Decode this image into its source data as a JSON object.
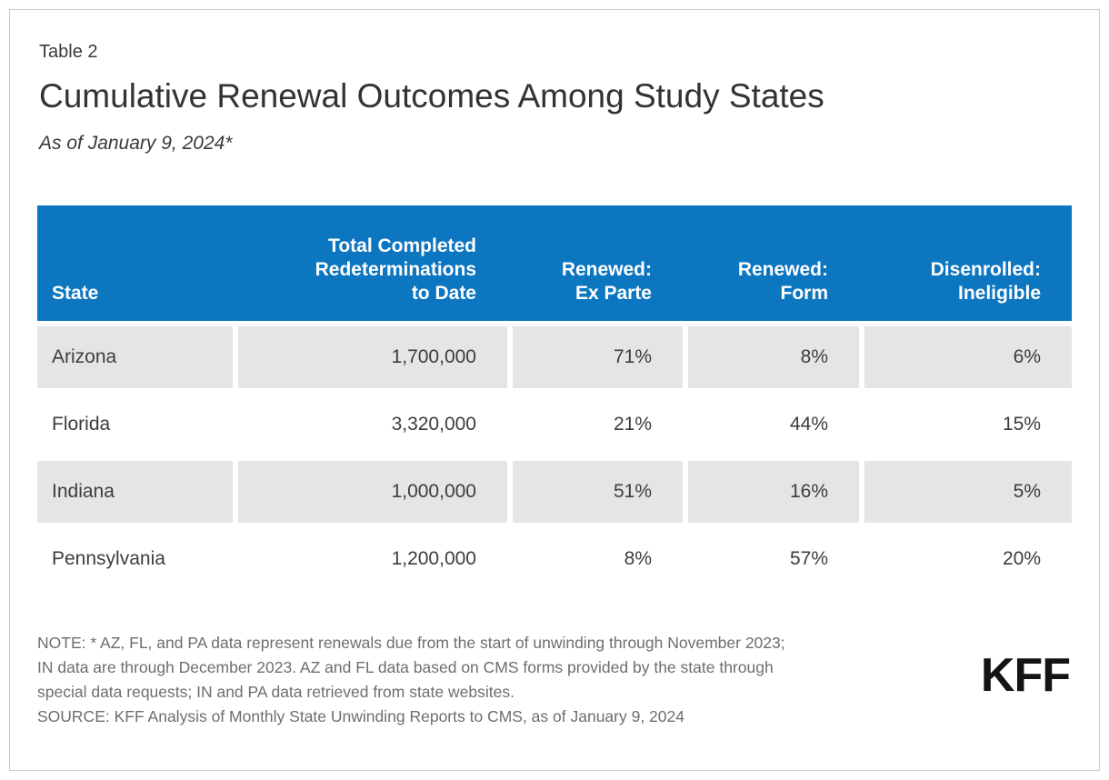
{
  "colors": {
    "header_blue": "#0d76c0",
    "row_gray": "#e5e5e5",
    "body_text": "#3d3d3d",
    "note_gray": "#6e6e6e"
  },
  "header": {
    "eyebrow": "Table 2",
    "title": "Cumulative Renewal Outcomes Among Study States",
    "subtitle": "As of January 9, 2024*"
  },
  "table": {
    "columns": [
      {
        "id": "state",
        "label": "State"
      },
      {
        "id": "total",
        "label": "Total Completed\nRedeterminations\nto Date"
      },
      {
        "id": "ex_parte",
        "label": "Renewed:\nEx Parte"
      },
      {
        "id": "form",
        "label": "Renewed:\nForm"
      },
      {
        "id": "ineligible",
        "label": "Disenrolled:\nIneligible"
      }
    ],
    "rows": [
      {
        "state": "Arizona",
        "total": "1,700,000",
        "ex_parte": "71%",
        "form": "8%",
        "ineligible": "6%"
      },
      {
        "state": "Florida",
        "total": "3,320,000",
        "ex_parte": "21%",
        "form": "44%",
        "ineligible": "15%"
      },
      {
        "state": "Indiana",
        "total": "1,000,000",
        "ex_parte": "51%",
        "form": "16%",
        "ineligible": "5%"
      },
      {
        "state": "Pennsylvania",
        "total": "1,200,000",
        "ex_parte": "8%",
        "form": "57%",
        "ineligible": "20%"
      }
    ]
  },
  "footer": {
    "note_lines": [
      "NOTE: * AZ, FL, and PA data represent renewals due from the start of unwinding through November 2023;",
      "IN data are through December 2023. AZ and FL data based on CMS forms provided by the state through",
      "special data requests; IN and PA data retrieved from state websites."
    ],
    "source_line": "SOURCE: KFF Analysis of Monthly State Unwinding Reports to CMS, as of January 9, 2024",
    "logo_text": "KFF"
  },
  "chart_data": {
    "type": "table",
    "title": "Cumulative Renewal Outcomes Among Study States",
    "subtitle": "As of January 9, 2024*",
    "columns": [
      "State",
      "Total Completed Redeterminations to Date",
      "Renewed: Ex Parte",
      "Renewed: Form",
      "Disenrolled: Ineligible"
    ],
    "rows": [
      [
        "Arizona",
        1700000,
        "71%",
        "8%",
        "6%"
      ],
      [
        "Florida",
        3320000,
        "21%",
        "44%",
        "15%"
      ],
      [
        "Indiana",
        1000000,
        "51%",
        "16%",
        "5%"
      ],
      [
        "Pennsylvania",
        1200000,
        "8%",
        "57%",
        "20%"
      ]
    ],
    "notes": "AZ, FL, and PA data represent renewals due from the start of unwinding through November 2023; IN data are through December 2023. AZ and FL data based on CMS forms provided by the state through special data requests; IN and PA data retrieved from state websites.",
    "source": "KFF Analysis of Monthly State Unwinding Reports to CMS, as of January 9, 2024"
  }
}
